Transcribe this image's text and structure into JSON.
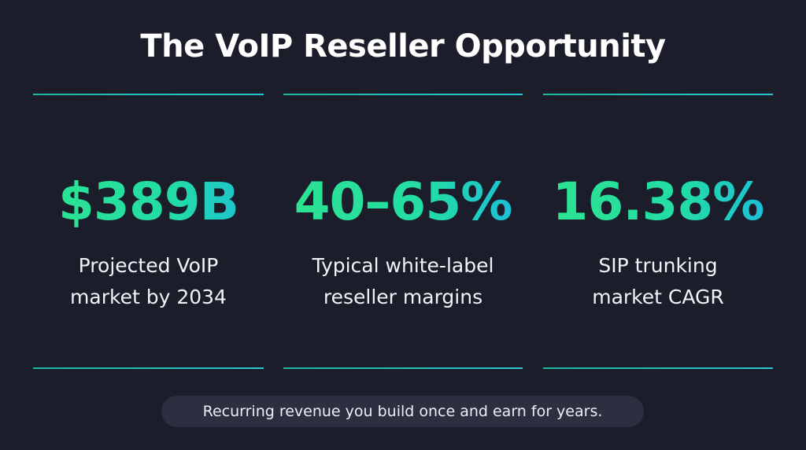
{
  "header": {
    "title": "The VoIP Reseller Opportunity"
  },
  "stats": [
    {
      "value": "$389B",
      "label_lines": [
        "Projected VoIP",
        "market by 2034"
      ]
    },
    {
      "value": "40–65%",
      "label_lines": [
        "Typical white-label",
        "reseller margins"
      ]
    },
    {
      "value": "16.38%",
      "label_lines": [
        "SIP trunking",
        "market CAGR"
      ]
    }
  ],
  "footer": {
    "tagline": "Recurring revenue you build once and earn for years."
  }
}
